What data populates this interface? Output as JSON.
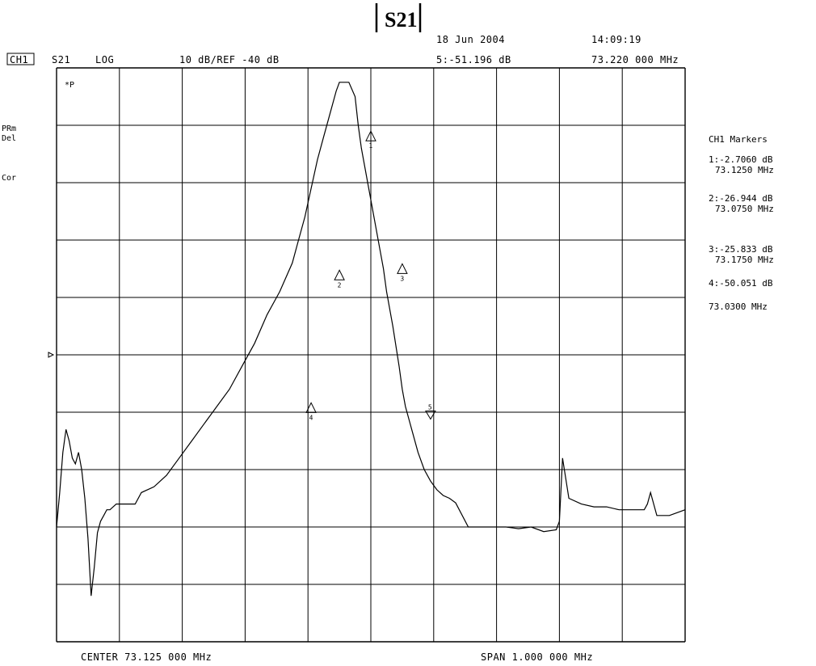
{
  "title": "S21",
  "header": {
    "date": "18 Jun 2004",
    "time": "14:09:19",
    "channel": "CH1",
    "param": "S21",
    "format": "LOG",
    "scale": "10 dB/REF -40 dB",
    "active_marker_value": "5:-51.196 dB",
    "active_marker_freq": "73.220 000 MHz"
  },
  "left_labels": {
    "ap": "*P",
    "prm": "PRm",
    "del": "Del",
    "cor": "Cor"
  },
  "footer": {
    "center": "CENTER  73.125 000 MHz",
    "span": "SPAN   1.000 000 MHz"
  },
  "markers_panel": {
    "title": "CH1 Markers",
    "entries": [
      {
        "value": "1:-2.7060 dB",
        "freq": "73.1250 MHz"
      },
      {
        "value": "2:-26.944 dB",
        "freq": "73.0750 MHz"
      },
      {
        "value": "3:-25.833 dB",
        "freq": "73.1750 MHz"
      },
      {
        "value": "4:-50.051 dB",
        "freq": ""
      },
      {
        "value": "",
        "freq": "73.0300 MHz"
      }
    ]
  },
  "chart_data": {
    "type": "line",
    "x_unit": "MHz",
    "y_unit": "dB",
    "xlim": [
      72.625,
      73.625
    ],
    "ylim": [
      -90,
      10
    ],
    "grid": true,
    "reference_level": -40,
    "trace": {
      "x": [
        72.625,
        72.63,
        72.635,
        72.64,
        72.645,
        72.65,
        72.655,
        72.66,
        72.665,
        72.67,
        72.675,
        72.68,
        72.685,
        72.69,
        72.695,
        72.7,
        72.705,
        72.71,
        72.72,
        72.73,
        72.74,
        72.75,
        72.76,
        72.78,
        72.8,
        72.82,
        72.84,
        72.86,
        72.88,
        72.9,
        72.92,
        72.94,
        72.96,
        72.98,
        73.0,
        73.01,
        73.02,
        73.03,
        73.04,
        73.05,
        73.06,
        73.07,
        73.075,
        73.08,
        73.09,
        73.1,
        73.105,
        73.11,
        73.12,
        73.125,
        73.13,
        73.14,
        73.145,
        73.15,
        73.16,
        73.17,
        73.175,
        73.18,
        73.19,
        73.2,
        73.21,
        73.22,
        73.23,
        73.24,
        73.25,
        73.26,
        73.28,
        73.3,
        73.31,
        73.32,
        73.34,
        73.36,
        73.38,
        73.4,
        73.42,
        73.425,
        73.43,
        73.44,
        73.46,
        73.48,
        73.5,
        73.52,
        73.54,
        73.56,
        73.565,
        73.57,
        73.58,
        73.6,
        73.625
      ],
      "y": [
        -70,
        -64,
        -57,
        -53,
        -55,
        -58,
        -59,
        -57,
        -60,
        -65,
        -72,
        -82,
        -77,
        -71,
        -69,
        -68,
        -67,
        -67,
        -66,
        -66,
        -66,
        -66,
        -64,
        -63,
        -61,
        -58,
        -55,
        -52,
        -49,
        -46,
        -42,
        -38,
        -33,
        -29,
        -24,
        -20,
        -16,
        -11,
        -6,
        -2,
        2,
        6,
        7.5,
        7.5,
        7.5,
        5,
        0,
        -4,
        -10,
        -13,
        -16,
        -22,
        -25,
        -29,
        -35,
        -42,
        -46,
        -49,
        -53,
        -57,
        -60,
        -62,
        -63.5,
        -64.5,
        -65,
        -65.8,
        -70,
        -70,
        -70,
        -70,
        -70,
        -70.3,
        -70,
        -70.8,
        -70.5,
        -69,
        -58,
        -65,
        -66,
        -66.5,
        -66.5,
        -67,
        -67,
        -67,
        -66,
        -64,
        -68,
        -68,
        -67
      ]
    },
    "markers": [
      {
        "id": "1",
        "x": 73.125,
        "y": -2.706
      },
      {
        "id": "2",
        "x": 73.075,
        "y": -26.944
      },
      {
        "id": "3",
        "x": 73.175,
        "y": -25.833
      },
      {
        "id": "4",
        "x": 73.03,
        "y": -50.051
      },
      {
        "id": "5",
        "x": 73.22,
        "y": -51.196
      }
    ]
  }
}
